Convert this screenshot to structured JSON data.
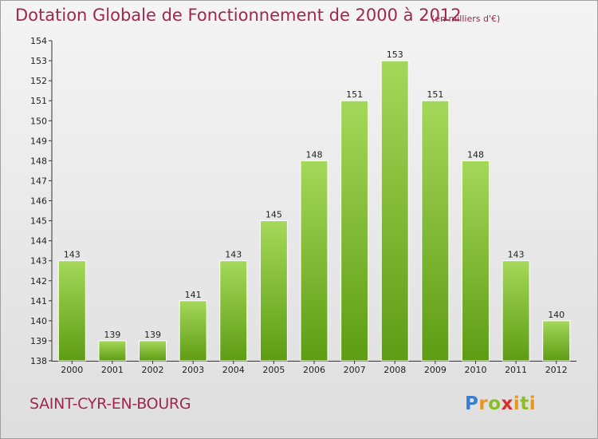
{
  "header": {
    "title": "Dotation Globale de Fonctionnement de 2000 à 2012",
    "units": "(en milliers d'€)"
  },
  "footer": {
    "commune": "SAINT-CYR-EN-BOURG",
    "brand": "Proxiti"
  },
  "colors": {
    "title": "#a0274f",
    "bar_light": "#a4d85a",
    "bar_dark": "#5e9c14"
  },
  "chart_data": {
    "type": "bar",
    "title": "Dotation Globale de Fonctionnement de 2000 à 2012",
    "subtitle": "(en milliers d'€)",
    "categories": [
      "2000",
      "2001",
      "2002",
      "2003",
      "2004",
      "2005",
      "2006",
      "2007",
      "2008",
      "2009",
      "2010",
      "2011",
      "2012"
    ],
    "values": [
      143,
      139,
      139,
      141,
      143,
      145,
      148,
      151,
      153,
      151,
      148,
      143,
      140
    ],
    "ylim": [
      138,
      154
    ],
    "yticks": [
      138,
      139,
      140,
      141,
      142,
      143,
      144,
      145,
      146,
      147,
      148,
      149,
      150,
      151,
      152,
      153,
      154
    ],
    "grid": false,
    "legend": "none"
  }
}
